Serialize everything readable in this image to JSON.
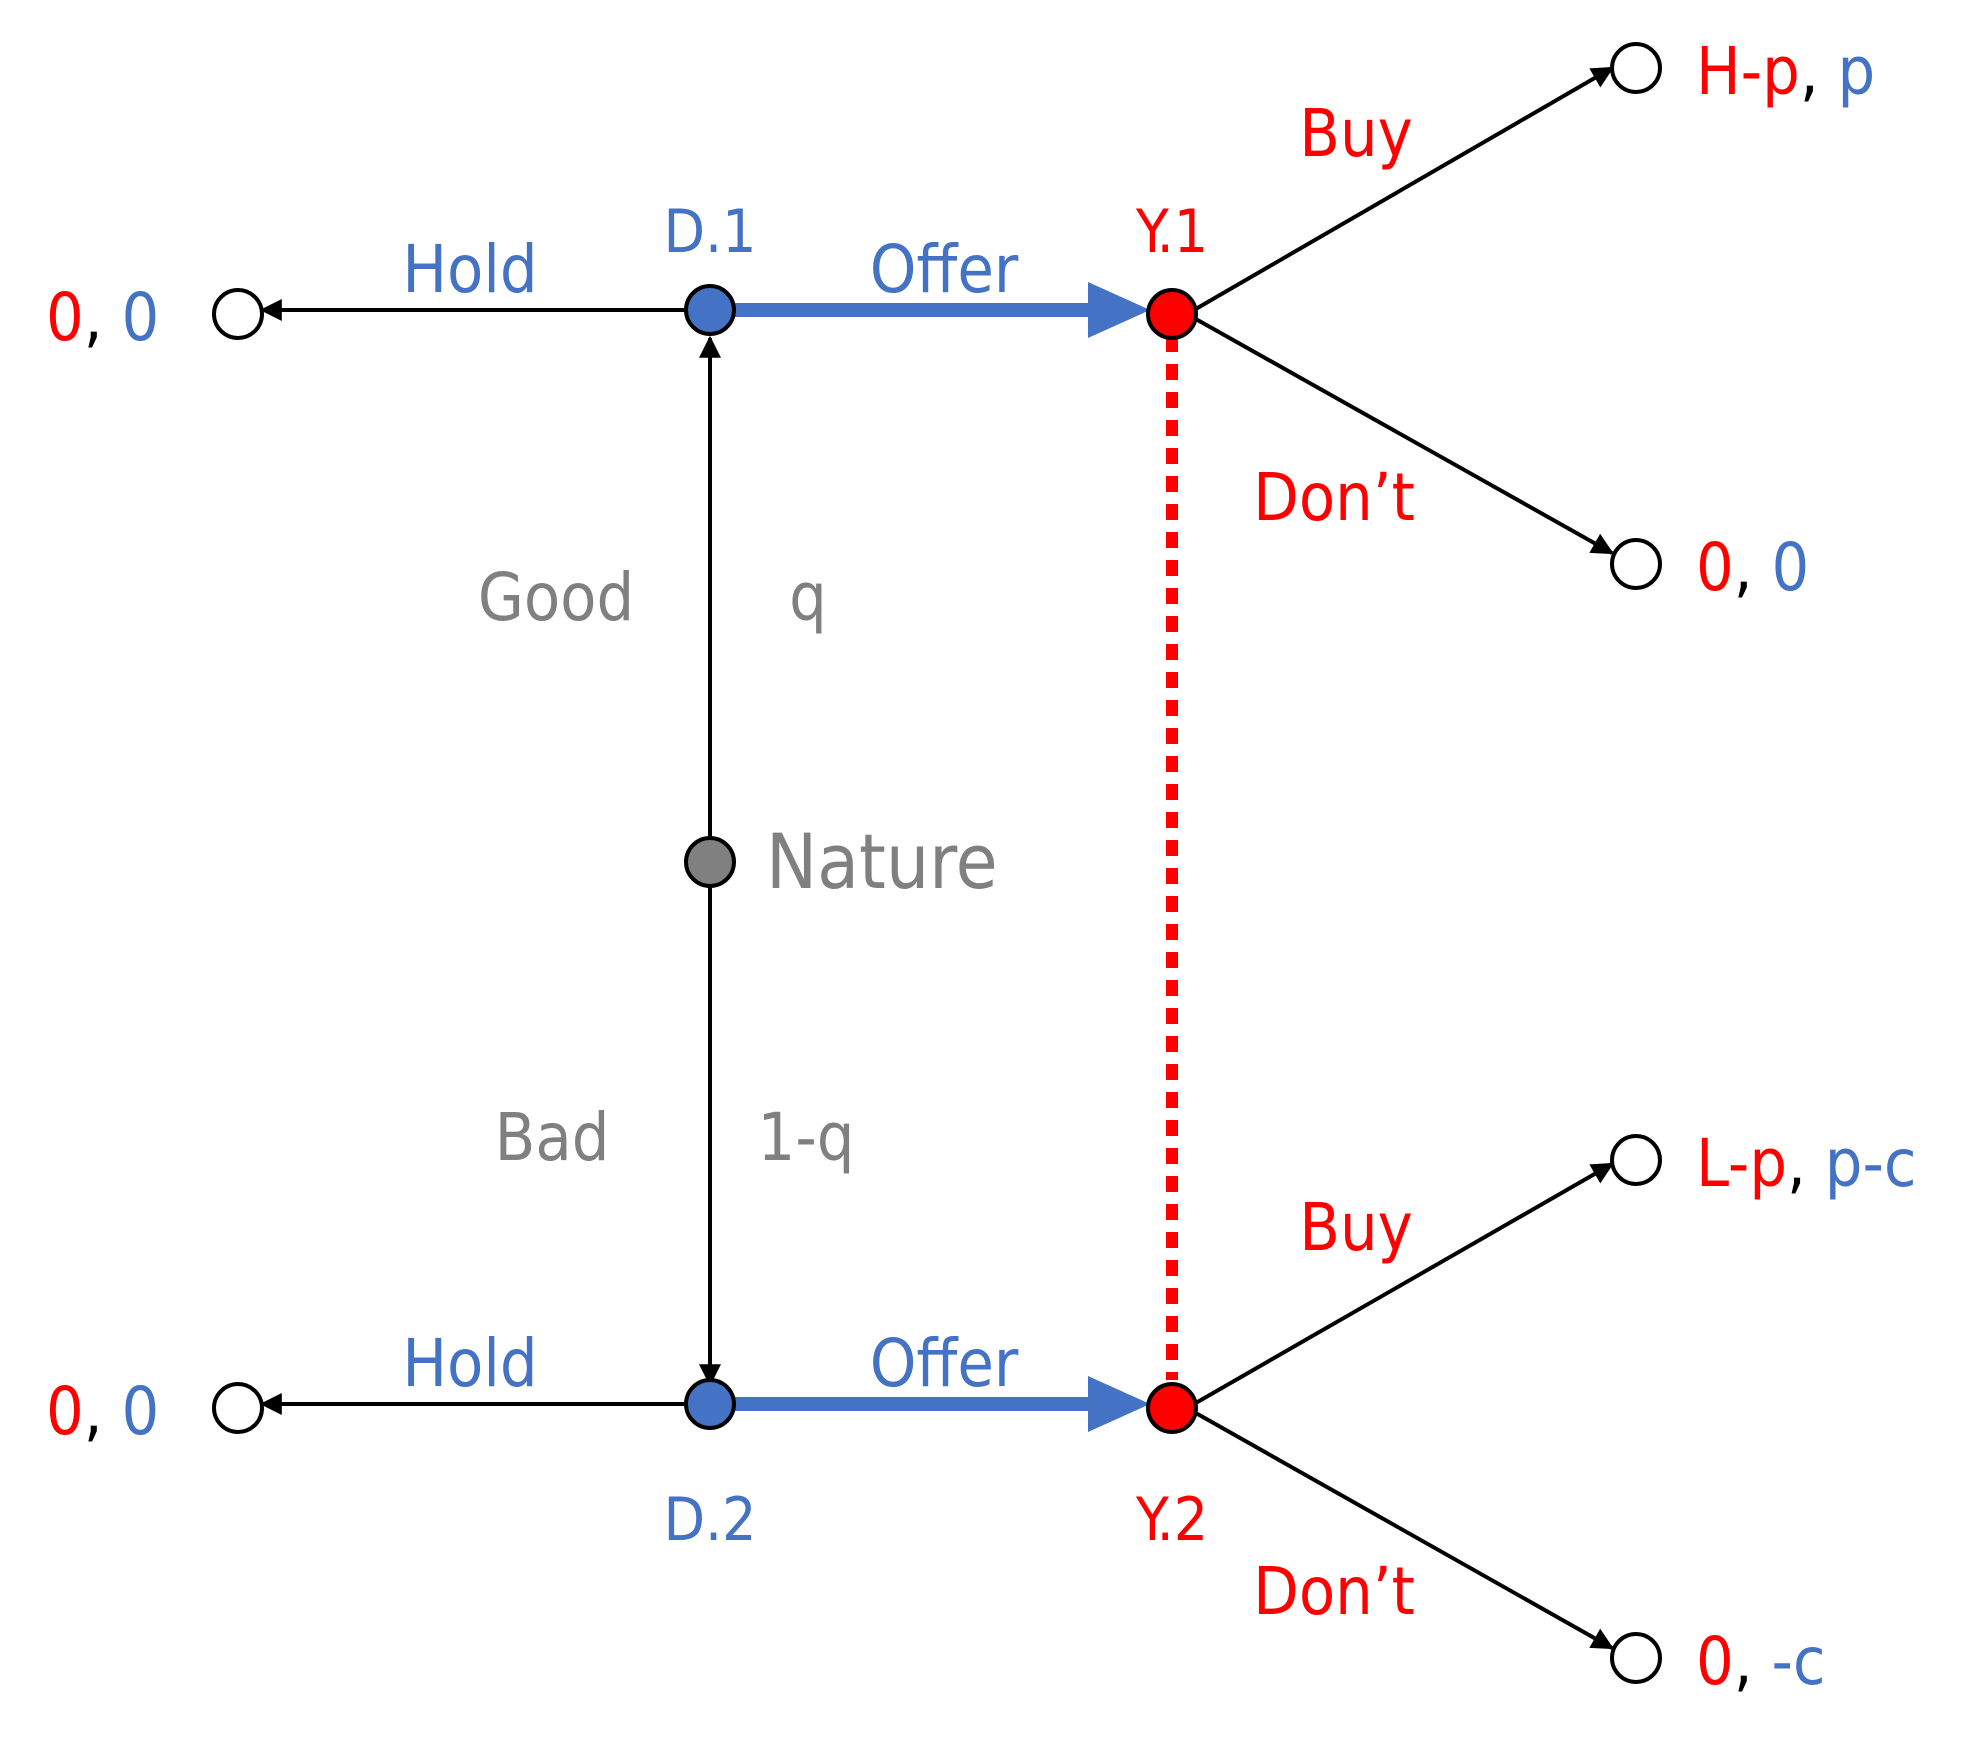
{
  "colors": {
    "red": "#ff0000",
    "blue": "#4472c4",
    "gray": "#808080",
    "black": "#000000",
    "white": "#ffffff"
  },
  "nodes": {
    "nature": "Nature",
    "d1": "D.1",
    "d2": "D.2",
    "y1": "Y.1",
    "y2": "Y.2"
  },
  "actions": {
    "hold_top": "Hold",
    "hold_bottom": "Hold",
    "offer_top": "Offer",
    "offer_bottom": "Offer",
    "buy_top": "Buy",
    "dont_top": "Don’t",
    "buy_bottom": "Buy",
    "dont_bottom": "Don’t"
  },
  "nature_moves": {
    "good": "Good",
    "good_prob": "q",
    "bad": "Bad",
    "bad_prob": "1-q"
  },
  "payoffs": {
    "hold_top": {
      "first": "0",
      "sep": ", ",
      "second": "0"
    },
    "hold_bottom": {
      "first": "0",
      "sep": ", ",
      "second": "0"
    },
    "buy_good": {
      "first": "H-p",
      "sep": ", ",
      "second": "p"
    },
    "dont_good": {
      "first": "0",
      "sep": ", ",
      "second": "0"
    },
    "buy_bad": {
      "first": "L-p",
      "sep": ", ",
      "second": "p-c"
    },
    "dont_bad": {
      "first": "0",
      "sep": ", ",
      "second": "-c"
    }
  }
}
